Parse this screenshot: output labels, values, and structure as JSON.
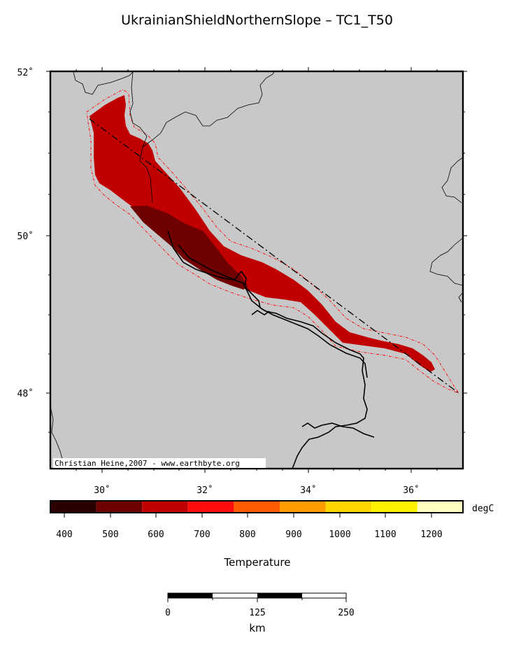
{
  "title": "UkrainianShieldNorthernSlope – TC1_T50",
  "map": {
    "lat_ticks": [
      {
        "value": 52,
        "label": "52˚"
      },
      {
        "value": 50,
        "label": "50˚"
      },
      {
        "value": 48,
        "label": "48˚"
      }
    ],
    "lon_ticks": [
      {
        "value": 30,
        "label": "30˚"
      },
      {
        "value": 32,
        "label": "32˚"
      },
      {
        "value": 34,
        "label": "34˚"
      },
      {
        "value": 36,
        "label": "36˚"
      }
    ],
    "credit": "Christian Heine,2007 - www.earthbyte.org",
    "colors": {
      "land": "#c8c8c8",
      "region_outer": "#c00000",
      "region_inner": "#700000",
      "outline": "#ff0000",
      "borders": "#000000"
    }
  },
  "colorbar": {
    "unit": "degC",
    "label": "Temperature",
    "tick_labels": [
      "400",
      "500",
      "600",
      "700",
      "800",
      "900",
      "1000",
      "1100",
      "1200"
    ],
    "colors": [
      "#2a0000",
      "#700000",
      "#c00000",
      "#ff0d0d",
      "#ff5a00",
      "#ff9c00",
      "#ffd600",
      "#fff200",
      "#fffd80",
      "#ffffd0"
    ]
  },
  "scalebar": {
    "tick_labels": [
      "0",
      "125",
      "250"
    ],
    "unit": "km"
  }
}
